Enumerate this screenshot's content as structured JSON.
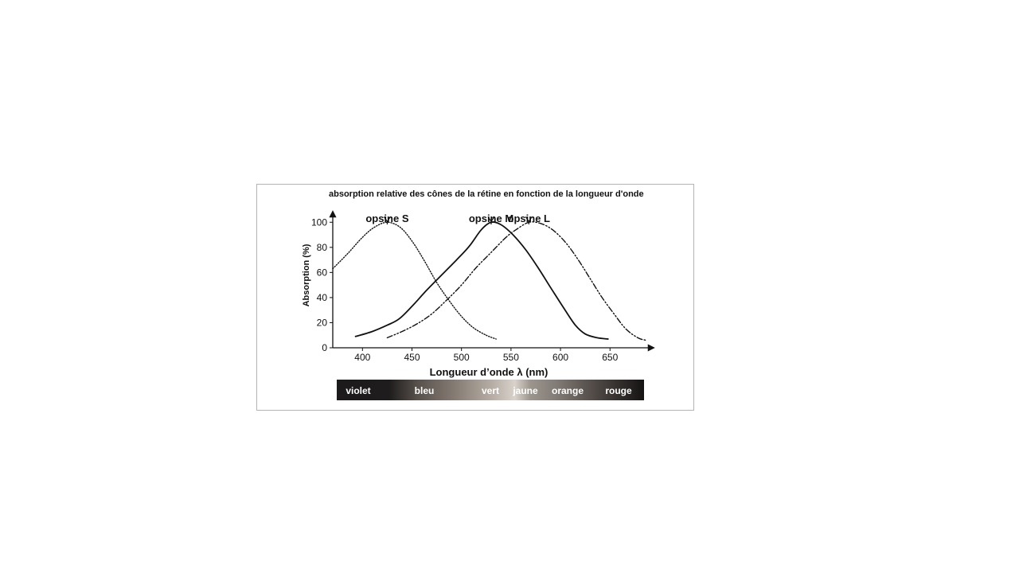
{
  "chart_data": {
    "type": "line",
    "title": "absorption relative des cônes de la rétine en fonction de la longueur d'onde",
    "xlabel": "Longueur d’onde λ (nm)",
    "ylabel": "Absorption (%)",
    "xlim": [
      370,
      690
    ],
    "ylim": [
      0,
      110
    ],
    "x_ticks": [
      400,
      450,
      500,
      550,
      600,
      650
    ],
    "y_ticks": [
      0,
      20,
      40,
      60,
      80,
      100
    ],
    "grid": false,
    "series": [
      {
        "name": "opsine S",
        "line_style": "dotted",
        "peak": 425,
        "points": [
          [
            370,
            63
          ],
          [
            385,
            75
          ],
          [
            400,
            88
          ],
          [
            412,
            96
          ],
          [
            425,
            100
          ],
          [
            438,
            96
          ],
          [
            450,
            85
          ],
          [
            462,
            70
          ],
          [
            475,
            52
          ],
          [
            488,
            37
          ],
          [
            500,
            25
          ],
          [
            512,
            16
          ],
          [
            525,
            10
          ],
          [
            535,
            7
          ]
        ]
      },
      {
        "name": "opsine M",
        "line_style": "solid",
        "peak": 530,
        "points": [
          [
            393,
            9
          ],
          [
            410,
            13
          ],
          [
            425,
            18
          ],
          [
            437,
            23
          ],
          [
            450,
            33
          ],
          [
            465,
            46
          ],
          [
            480,
            58
          ],
          [
            495,
            70
          ],
          [
            508,
            81
          ],
          [
            520,
            94
          ],
          [
            530,
            100
          ],
          [
            540,
            98
          ],
          [
            552,
            90
          ],
          [
            565,
            78
          ],
          [
            578,
            63
          ],
          [
            590,
            48
          ],
          [
            603,
            32
          ],
          [
            615,
            18
          ],
          [
            625,
            11
          ],
          [
            637,
            8
          ],
          [
            648,
            7
          ]
        ]
      },
      {
        "name": "opsine L",
        "line_style": "dash-dot-dot",
        "peak": 568,
        "points": [
          [
            425,
            8
          ],
          [
            440,
            13
          ],
          [
            455,
            19
          ],
          [
            470,
            27
          ],
          [
            485,
            38
          ],
          [
            500,
            50
          ],
          [
            515,
            64
          ],
          [
            530,
            76
          ],
          [
            545,
            88
          ],
          [
            555,
            94
          ],
          [
            568,
            100
          ],
          [
            580,
            99
          ],
          [
            592,
            94
          ],
          [
            605,
            84
          ],
          [
            618,
            70
          ],
          [
            630,
            55
          ],
          [
            642,
            40
          ],
          [
            655,
            26
          ],
          [
            666,
            15
          ],
          [
            678,
            8
          ],
          [
            686,
            6
          ]
        ]
      }
    ],
    "spectrum_band": {
      "labels": [
        "violet",
        "bleu",
        "vert",
        "jaune",
        "orange",
        "rouge"
      ]
    }
  }
}
